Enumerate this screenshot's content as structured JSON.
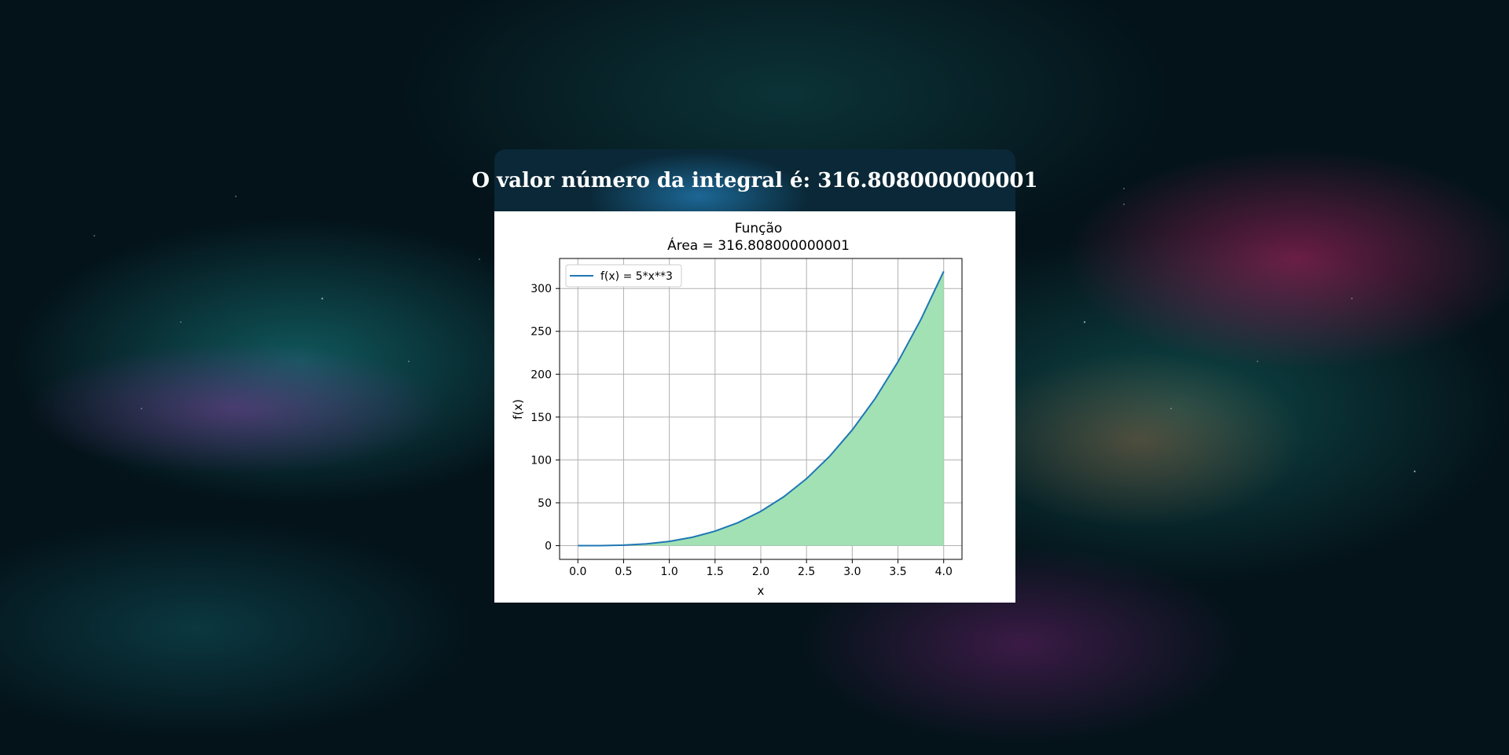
{
  "page": {
    "result_text": "O valor número da integral é: 316.808000000001"
  },
  "chart_data": {
    "type": "area",
    "title": "Função",
    "subtitle": "Área = 316.808000000001",
    "xlabel": "x",
    "ylabel": "f(x)",
    "xlim": [
      -0.2,
      4.2
    ],
    "ylim": [
      -16,
      335
    ],
    "xticks": [
      "0.0",
      "0.5",
      "1.0",
      "1.5",
      "2.0",
      "2.5",
      "3.0",
      "3.5",
      "4.0"
    ],
    "yticks": [
      "0",
      "50",
      "100",
      "150",
      "200",
      "250",
      "300"
    ],
    "grid": true,
    "legend_placement": "top-left",
    "fill_color": "#a1e1b4",
    "line_color": "#1f77b4",
    "series": [
      {
        "name": "f(x) = 5*x**3",
        "x": [
          0,
          0.25,
          0.5,
          0.75,
          1,
          1.25,
          1.5,
          1.75,
          2,
          2.25,
          2.5,
          2.75,
          3,
          3.25,
          3.5,
          3.75,
          4
        ],
        "y": [
          0,
          0.078,
          0.625,
          2.109,
          5,
          9.766,
          16.875,
          26.797,
          40,
          56.953,
          78.125,
          103.984,
          135,
          171.641,
          214.375,
          263.672,
          320
        ]
      }
    ],
    "fill_range": [
      0,
      4
    ]
  }
}
